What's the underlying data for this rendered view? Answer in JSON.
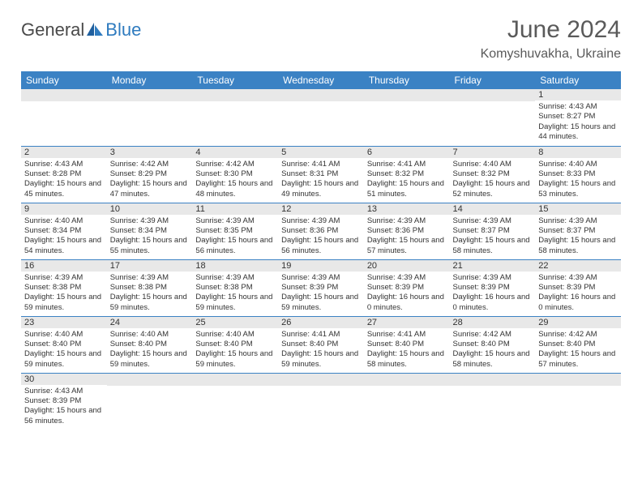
{
  "logo": {
    "text1": "General",
    "text2": "Blue"
  },
  "title": "June 2024",
  "location": "Komyshuvakha, Ukraine",
  "colors": {
    "header_bg": "#3b82c4",
    "header_text": "#ffffff",
    "daynum_bg": "#e8e8e8",
    "border": "#3b82c4",
    "text": "#333333",
    "title_text": "#5a5a5a"
  },
  "day_headers": [
    "Sunday",
    "Monday",
    "Tuesday",
    "Wednesday",
    "Thursday",
    "Friday",
    "Saturday"
  ],
  "weeks": [
    [
      null,
      null,
      null,
      null,
      null,
      null,
      {
        "n": "1",
        "sr": "4:43 AM",
        "ss": "8:27 PM",
        "dl": "15 hours and 44 minutes."
      }
    ],
    [
      {
        "n": "2",
        "sr": "4:43 AM",
        "ss": "8:28 PM",
        "dl": "15 hours and 45 minutes."
      },
      {
        "n": "3",
        "sr": "4:42 AM",
        "ss": "8:29 PM",
        "dl": "15 hours and 47 minutes."
      },
      {
        "n": "4",
        "sr": "4:42 AM",
        "ss": "8:30 PM",
        "dl": "15 hours and 48 minutes."
      },
      {
        "n": "5",
        "sr": "4:41 AM",
        "ss": "8:31 PM",
        "dl": "15 hours and 49 minutes."
      },
      {
        "n": "6",
        "sr": "4:41 AM",
        "ss": "8:32 PM",
        "dl": "15 hours and 51 minutes."
      },
      {
        "n": "7",
        "sr": "4:40 AM",
        "ss": "8:32 PM",
        "dl": "15 hours and 52 minutes."
      },
      {
        "n": "8",
        "sr": "4:40 AM",
        "ss": "8:33 PM",
        "dl": "15 hours and 53 minutes."
      }
    ],
    [
      {
        "n": "9",
        "sr": "4:40 AM",
        "ss": "8:34 PM",
        "dl": "15 hours and 54 minutes."
      },
      {
        "n": "10",
        "sr": "4:39 AM",
        "ss": "8:34 PM",
        "dl": "15 hours and 55 minutes."
      },
      {
        "n": "11",
        "sr": "4:39 AM",
        "ss": "8:35 PM",
        "dl": "15 hours and 56 minutes."
      },
      {
        "n": "12",
        "sr": "4:39 AM",
        "ss": "8:36 PM",
        "dl": "15 hours and 56 minutes."
      },
      {
        "n": "13",
        "sr": "4:39 AM",
        "ss": "8:36 PM",
        "dl": "15 hours and 57 minutes."
      },
      {
        "n": "14",
        "sr": "4:39 AM",
        "ss": "8:37 PM",
        "dl": "15 hours and 58 minutes."
      },
      {
        "n": "15",
        "sr": "4:39 AM",
        "ss": "8:37 PM",
        "dl": "15 hours and 58 minutes."
      }
    ],
    [
      {
        "n": "16",
        "sr": "4:39 AM",
        "ss": "8:38 PM",
        "dl": "15 hours and 59 minutes."
      },
      {
        "n": "17",
        "sr": "4:39 AM",
        "ss": "8:38 PM",
        "dl": "15 hours and 59 minutes."
      },
      {
        "n": "18",
        "sr": "4:39 AM",
        "ss": "8:38 PM",
        "dl": "15 hours and 59 minutes."
      },
      {
        "n": "19",
        "sr": "4:39 AM",
        "ss": "8:39 PM",
        "dl": "15 hours and 59 minutes."
      },
      {
        "n": "20",
        "sr": "4:39 AM",
        "ss": "8:39 PM",
        "dl": "16 hours and 0 minutes."
      },
      {
        "n": "21",
        "sr": "4:39 AM",
        "ss": "8:39 PM",
        "dl": "16 hours and 0 minutes."
      },
      {
        "n": "22",
        "sr": "4:39 AM",
        "ss": "8:39 PM",
        "dl": "16 hours and 0 minutes."
      }
    ],
    [
      {
        "n": "23",
        "sr": "4:40 AM",
        "ss": "8:40 PM",
        "dl": "15 hours and 59 minutes."
      },
      {
        "n": "24",
        "sr": "4:40 AM",
        "ss": "8:40 PM",
        "dl": "15 hours and 59 minutes."
      },
      {
        "n": "25",
        "sr": "4:40 AM",
        "ss": "8:40 PM",
        "dl": "15 hours and 59 minutes."
      },
      {
        "n": "26",
        "sr": "4:41 AM",
        "ss": "8:40 PM",
        "dl": "15 hours and 59 minutes."
      },
      {
        "n": "27",
        "sr": "4:41 AM",
        "ss": "8:40 PM",
        "dl": "15 hours and 58 minutes."
      },
      {
        "n": "28",
        "sr": "4:42 AM",
        "ss": "8:40 PM",
        "dl": "15 hours and 58 minutes."
      },
      {
        "n": "29",
        "sr": "4:42 AM",
        "ss": "8:40 PM",
        "dl": "15 hours and 57 minutes."
      }
    ],
    [
      {
        "n": "30",
        "sr": "4:43 AM",
        "ss": "8:39 PM",
        "dl": "15 hours and 56 minutes."
      },
      null,
      null,
      null,
      null,
      null,
      null
    ]
  ],
  "labels": {
    "sunrise": "Sunrise:",
    "sunset": "Sunset:",
    "daylight": "Daylight:"
  }
}
